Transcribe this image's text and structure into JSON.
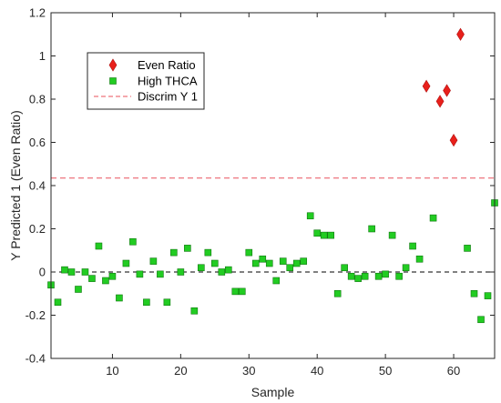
{
  "chart_data": {
    "type": "scatter",
    "xlabel": "Sample",
    "ylabel": "Y Predicted 1 (Even Ratio)",
    "xlim": [
      1,
      66
    ],
    "ylim": [
      -0.4,
      1.2
    ],
    "x_ticks": [
      10,
      20,
      30,
      40,
      50,
      60
    ],
    "y_ticks": [
      -0.4,
      -0.2,
      0,
      0.2,
      0.4,
      0.6,
      0.8,
      1,
      1.2
    ],
    "y_tick_labels": [
      "-0.4",
      "-0.2",
      "0",
      "0.2",
      "0.4",
      "0.6",
      "0.8",
      "1",
      "1.2"
    ],
    "grid": false,
    "legend_position": "top-left",
    "zero_line": {
      "y": 0,
      "color": "#000000",
      "style": "dashed"
    },
    "series": [
      {
        "name": "Even Ratio",
        "marker": "diamond",
        "color": "#e8201b",
        "points": [
          {
            "x": 56,
            "y": 0.86
          },
          {
            "x": 58,
            "y": 0.79
          },
          {
            "x": 59,
            "y": 0.84
          },
          {
            "x": 60,
            "y": 0.61
          },
          {
            "x": 61,
            "y": 1.1
          }
        ]
      },
      {
        "name": "High THCA",
        "marker": "square",
        "color": "#22cc22",
        "points": [
          {
            "x": 1,
            "y": -0.06
          },
          {
            "x": 2,
            "y": -0.14
          },
          {
            "x": 3,
            "y": 0.01
          },
          {
            "x": 4,
            "y": 0.0
          },
          {
            "x": 5,
            "y": -0.08
          },
          {
            "x": 6,
            "y": 0.0
          },
          {
            "x": 7,
            "y": -0.03
          },
          {
            "x": 8,
            "y": 0.12
          },
          {
            "x": 9,
            "y": -0.04
          },
          {
            "x": 10,
            "y": -0.02
          },
          {
            "x": 11,
            "y": -0.12
          },
          {
            "x": 12,
            "y": 0.04
          },
          {
            "x": 13,
            "y": 0.14
          },
          {
            "x": 14,
            "y": -0.01
          },
          {
            "x": 15,
            "y": -0.14
          },
          {
            "x": 16,
            "y": 0.05
          },
          {
            "x": 17,
            "y": -0.01
          },
          {
            "x": 18,
            "y": -0.14
          },
          {
            "x": 19,
            "y": 0.09
          },
          {
            "x": 20,
            "y": 0.0
          },
          {
            "x": 21,
            "y": 0.11
          },
          {
            "x": 22,
            "y": -0.18
          },
          {
            "x": 23,
            "y": 0.02
          },
          {
            "x": 24,
            "y": 0.09
          },
          {
            "x": 25,
            "y": 0.04
          },
          {
            "x": 26,
            "y": 0.0
          },
          {
            "x": 27,
            "y": 0.01
          },
          {
            "x": 28,
            "y": -0.09
          },
          {
            "x": 29,
            "y": -0.09
          },
          {
            "x": 30,
            "y": 0.09
          },
          {
            "x": 31,
            "y": 0.04
          },
          {
            "x": 32,
            "y": 0.06
          },
          {
            "x": 33,
            "y": 0.04
          },
          {
            "x": 34,
            "y": -0.04
          },
          {
            "x": 35,
            "y": 0.05
          },
          {
            "x": 36,
            "y": 0.02
          },
          {
            "x": 37,
            "y": 0.04
          },
          {
            "x": 38,
            "y": 0.05
          },
          {
            "x": 39,
            "y": 0.26
          },
          {
            "x": 40,
            "y": 0.18
          },
          {
            "x": 41,
            "y": 0.17
          },
          {
            "x": 42,
            "y": 0.17
          },
          {
            "x": 43,
            "y": -0.1
          },
          {
            "x": 44,
            "y": 0.02
          },
          {
            "x": 45,
            "y": -0.02
          },
          {
            "x": 46,
            "y": -0.03
          },
          {
            "x": 47,
            "y": -0.02
          },
          {
            "x": 48,
            "y": 0.2
          },
          {
            "x": 49,
            "y": -0.02
          },
          {
            "x": 50,
            "y": -0.01
          },
          {
            "x": 51,
            "y": 0.17
          },
          {
            "x": 52,
            "y": -0.02
          },
          {
            "x": 53,
            "y": 0.02
          },
          {
            "x": 54,
            "y": 0.12
          },
          {
            "x": 55,
            "y": 0.06
          },
          {
            "x": 57,
            "y": 0.25
          },
          {
            "x": 62,
            "y": 0.11
          },
          {
            "x": 63,
            "y": -0.1
          },
          {
            "x": 64,
            "y": -0.22
          },
          {
            "x": 65,
            "y": -0.11
          },
          {
            "x": 66,
            "y": 0.32
          }
        ]
      },
      {
        "name": "Discrim Y 1",
        "marker": "dashed-line",
        "color": "#e8515b",
        "y": 0.435
      }
    ]
  }
}
